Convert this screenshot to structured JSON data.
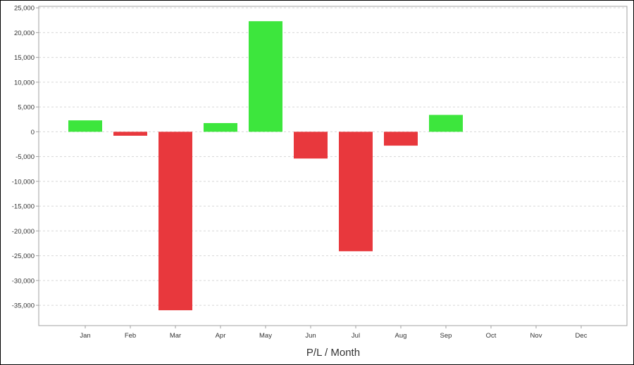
{
  "chart_data": {
    "type": "bar",
    "title": "",
    "xlabel": "P/L / Month",
    "ylabel": "",
    "categories": [
      "Jan",
      "Feb",
      "Mar",
      "Apr",
      "May",
      "Jun",
      "Jul",
      "Aug",
      "Sep",
      "Oct",
      "Nov",
      "Dec"
    ],
    "values": [
      2300,
      -800,
      -36000,
      1750,
      22300,
      -5400,
      -24100,
      -2800,
      3400,
      null,
      null,
      null
    ],
    "ylim": [
      -39100,
      25300
    ],
    "yticks": [
      25000,
      20000,
      15000,
      10000,
      5000,
      0,
      -5000,
      -10000,
      -15000,
      -20000,
      -25000,
      -30000,
      -35000
    ],
    "ytick_labels": [
      "25,000",
      "20,000",
      "15,000",
      "10,000",
      "5,000",
      "0",
      "-5,000",
      "-10,000",
      "-15,000",
      "-20,000",
      "-25,000",
      "-30,000",
      "-35,000"
    ],
    "grid": true,
    "colors": {
      "positive": "#3de63d",
      "negative": "#e8383d",
      "grid": "#d8d8d8",
      "axis": "#a0a0a0"
    }
  }
}
